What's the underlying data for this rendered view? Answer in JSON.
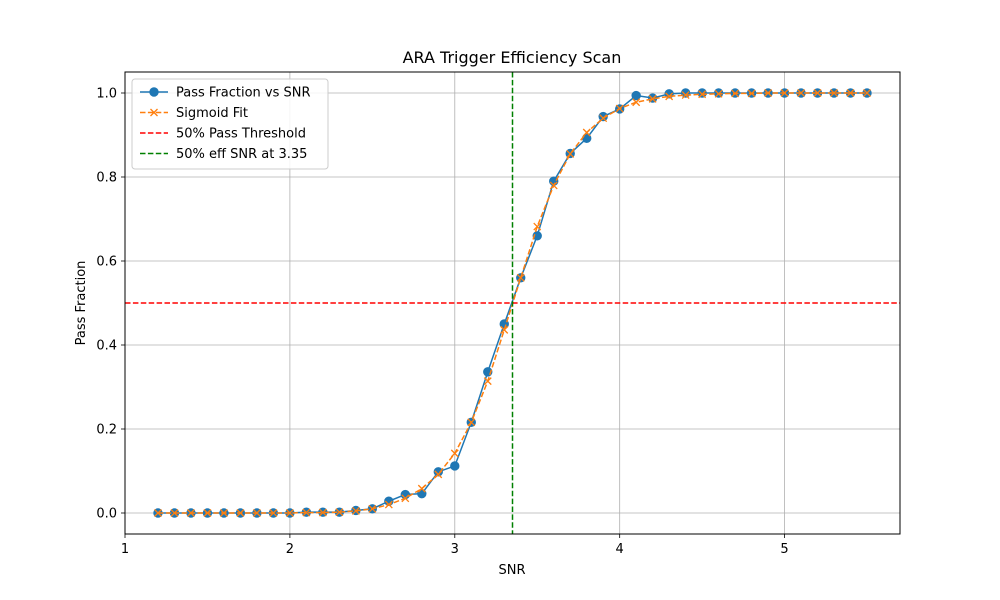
{
  "chart_data": {
    "type": "line",
    "title": "ARA Trigger Efficiency Scan",
    "xlabel": "SNR",
    "ylabel": "Pass Fraction",
    "xlim": [
      1.0,
      5.7
    ],
    "ylim": [
      -0.05,
      1.05
    ],
    "xticks": [
      1,
      2,
      3,
      4,
      5
    ],
    "yticks": [
      0.0,
      0.2,
      0.4,
      0.6,
      0.8,
      1.0
    ],
    "xtick_labels": [
      "1",
      "2",
      "3",
      "4",
      "5"
    ],
    "ytick_labels": [
      "0.0",
      "0.2",
      "0.4",
      "0.6",
      "0.8",
      "1.0"
    ],
    "grid": true,
    "legend_position": "top-left",
    "x": [
      1.2,
      1.3,
      1.4,
      1.5,
      1.6,
      1.7,
      1.8,
      1.9,
      2.0,
      2.1,
      2.2,
      2.3,
      2.4,
      2.5,
      2.6,
      2.7,
      2.8,
      2.9,
      3.0,
      3.1,
      3.2,
      3.3,
      3.4,
      3.5,
      3.6,
      3.7,
      3.8,
      3.9,
      4.0,
      4.1,
      4.2,
      4.3,
      4.4,
      4.5,
      4.6,
      4.7,
      4.8,
      4.9,
      5.0,
      5.1,
      5.2,
      5.3,
      5.4,
      5.5
    ],
    "series": [
      {
        "name": "Pass Fraction vs SNR",
        "color": "#1f77b4",
        "style": "solid",
        "marker": "circle",
        "values": [
          0.0,
          0.0,
          0.0,
          0.0,
          0.0,
          0.0,
          0.0,
          0.0,
          0.0,
          0.002,
          0.002,
          0.002,
          0.006,
          0.01,
          0.028,
          0.044,
          0.046,
          0.098,
          0.112,
          0.216,
          0.336,
          0.45,
          0.56,
          0.66,
          0.79,
          0.856,
          0.892,
          0.944,
          0.962,
          0.994,
          0.988,
          0.998,
          1.0,
          1.0,
          1.0,
          1.0,
          1.0,
          1.0,
          1.0,
          1.0,
          1.0,
          1.0,
          1.0,
          1.0
        ]
      },
      {
        "name": "Sigmoid Fit",
        "color": "#ff7f0e",
        "style": "dashed",
        "marker": "x",
        "values": [
          0.0,
          0.0,
          0.0,
          0.0,
          0.0,
          0.0,
          0.0,
          0.0,
          0.0,
          0.001,
          0.001,
          0.002,
          0.005,
          0.01,
          0.02,
          0.035,
          0.058,
          0.092,
          0.142,
          0.216,
          0.314,
          0.436,
          0.56,
          0.682,
          0.78,
          0.855,
          0.906,
          0.94,
          0.963,
          0.978,
          0.986,
          0.992,
          0.995,
          0.997,
          0.998,
          0.999,
          0.999,
          1.0,
          1.0,
          1.0,
          1.0,
          1.0,
          1.0,
          1.0
        ]
      }
    ],
    "reference_lines": [
      {
        "name": "50% Pass Threshold",
        "orientation": "horizontal",
        "value": 0.5,
        "color": "#ff0000",
        "style": "dashed"
      },
      {
        "name": "50% eff SNR at 3.35",
        "orientation": "vertical",
        "value": 3.35,
        "color": "#008000",
        "style": "dashed"
      }
    ]
  }
}
